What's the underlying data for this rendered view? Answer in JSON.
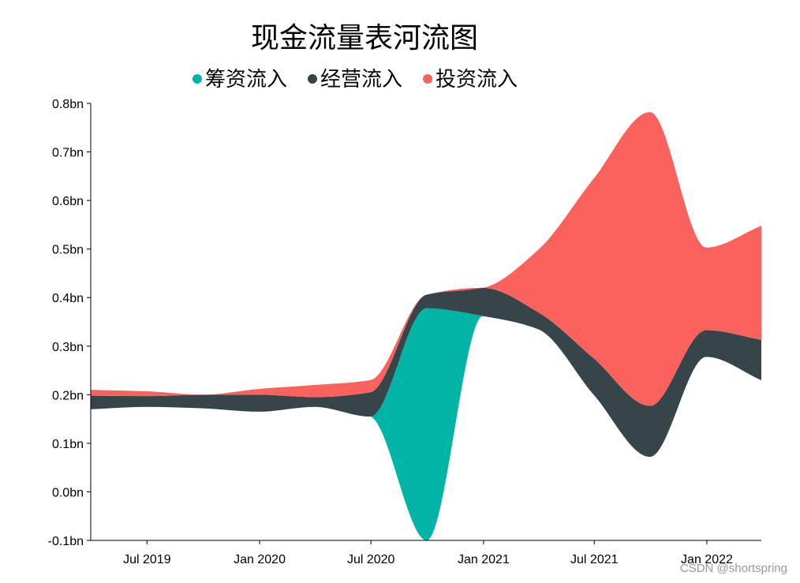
{
  "chart_data": {
    "type": "area",
    "subtype": "streamgraph",
    "title": "现金流量表河流图",
    "xlabel": "",
    "ylabel": "",
    "ylim": [
      -0.1,
      0.8
    ],
    "y_ticks": [
      -0.1,
      0.0,
      0.1,
      0.2,
      0.3,
      0.4,
      0.5,
      0.6,
      0.7,
      0.8
    ],
    "y_tick_labels": [
      "-0.1bn",
      "0.0bn",
      "0.1bn",
      "0.2bn",
      "0.3bn",
      "0.4bn",
      "0.5bn",
      "0.6bn",
      "0.7bn",
      "0.8bn"
    ],
    "x_range": [
      "2019-03-31",
      "2022-03-31"
    ],
    "x_ticks": [
      "2019-07-01",
      "2020-01-01",
      "2020-07-01",
      "2021-01-01",
      "2021-07-01",
      "2022-01-01"
    ],
    "x_tick_labels": [
      "Jul 2019",
      "Jan 2020",
      "Jul 2020",
      "Jan 2021",
      "Jul 2021",
      "Jan 2022"
    ],
    "legend_position": "top",
    "grid": false,
    "x": [
      "2019-03-31",
      "2019-06-30",
      "2019-09-30",
      "2019-12-31",
      "2020-03-31",
      "2020-06-30",
      "2020-09-30",
      "2020-12-31",
      "2021-03-31",
      "2021-06-30",
      "2021-09-30",
      "2021-12-31",
      "2022-03-31"
    ],
    "baseline": [
      0.17,
      0.175,
      0.172,
      0.165,
      0.175,
      0.155,
      -0.1,
      0.362,
      0.335,
      0.2,
      0.072,
      0.278,
      0.23
    ],
    "series": [
      {
        "name": "筹资流入",
        "color": "#00b5a5",
        "values": [
          0.0,
          0.0,
          0.0,
          0.0,
          0.0,
          0.0,
          0.478,
          0.0,
          0.0,
          0.0,
          0.0,
          0.0,
          0.0
        ]
      },
      {
        "name": "经营流入",
        "color": "#36454a",
        "values": [
          0.028,
          0.022,
          0.028,
          0.035,
          0.02,
          0.05,
          0.028,
          0.058,
          0.035,
          0.075,
          0.105,
          0.055,
          0.083
        ]
      },
      {
        "name": "投资流入",
        "color": "#fb625e",
        "values": [
          0.012,
          0.01,
          0.0,
          0.012,
          0.025,
          0.025,
          0.0,
          0.0,
          0.128,
          0.37,
          0.605,
          0.17,
          0.235
        ]
      }
    ],
    "watermark": "CSDN @shortspring"
  }
}
